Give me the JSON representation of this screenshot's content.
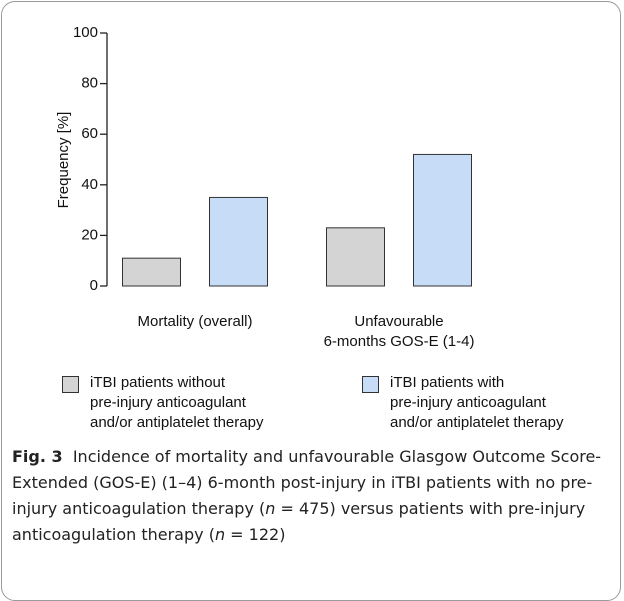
{
  "chart_data": {
    "type": "bar",
    "categories": [
      "Mortality (overall)",
      "Unfavourable\n6-months GOS-E (1-4)"
    ],
    "ylabel": "Frequency [%]",
    "ylim": [
      0,
      100
    ],
    "yticks": [
      0,
      20,
      40,
      60,
      80,
      100
    ],
    "series": [
      {
        "name": "iTBI patients without\npre-injury anticoagulant\nand/or antiplatelet therapy",
        "color": "#d4d4d4",
        "values": [
          11,
          23
        ]
      },
      {
        "name": "iTBI patients with\npre-injury anticoagulant\nand/or antiplatelet therapy",
        "color": "#c6dcf7",
        "values": [
          35,
          52
        ]
      }
    ]
  },
  "caption": {
    "label": "Fig. 3",
    "parts": [
      "Incidence of mortality and unfavourable Glasgow Outcome Score-Extended (GOS-E) (1–4) 6-month post-injury in iTBI patients with no pre-injury anticoagulation therapy (",
      "n",
      " = 475) versus patients with pre-injury anticoagulation therapy (",
      "n",
      " = 122)"
    ]
  }
}
